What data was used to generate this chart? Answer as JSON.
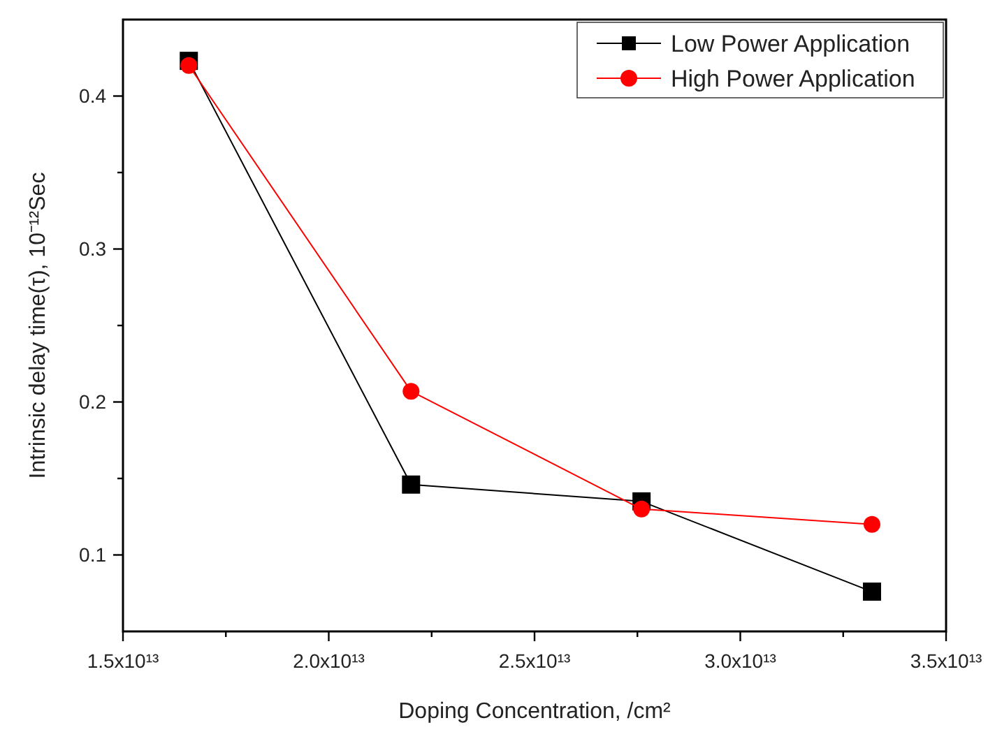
{
  "chart_data": {
    "type": "line",
    "xlabel": "Doping Concentration, /cm²",
    "ylabel": "Intrinsic delay time(τ), 10⁻¹²Sec",
    "x": [
      16600000000000.0,
      22000000000000.0,
      27600000000000.0,
      33200000000000.0
    ],
    "series": [
      {
        "name": "Low Power Application",
        "color": "#000000",
        "marker": "square",
        "values": [
          0.423,
          0.146,
          0.135,
          0.076
        ]
      },
      {
        "name": "High Power Application",
        "color": "#ff0000",
        "marker": "circle",
        "values": [
          0.42,
          0.207,
          0.13,
          0.12
        ]
      }
    ],
    "xlim": [
      15000000000000.0,
      35000000000000.0
    ],
    "xticks": [
      {
        "value": 15000000000000.0,
        "label": "1.5x10¹³"
      },
      {
        "value": 17500000000000.0,
        "label": null
      },
      {
        "value": 20000000000000.0,
        "label": "2.0x10¹³"
      },
      {
        "value": 22500000000000.0,
        "label": null
      },
      {
        "value": 25000000000000.0,
        "label": "2.5x10¹³"
      },
      {
        "value": 27500000000000.0,
        "label": null
      },
      {
        "value": 30000000000000.0,
        "label": "3.0x10¹³"
      },
      {
        "value": 32500000000000.0,
        "label": null
      },
      {
        "value": 35000000000000.0,
        "label": "3.5x10¹³"
      }
    ],
    "ylim": [
      0.05,
      0.45
    ],
    "yticks": [
      {
        "value": 0.1,
        "label": "0.1"
      },
      {
        "value": 0.15,
        "label": null
      },
      {
        "value": 0.2,
        "label": "0.2"
      },
      {
        "value": 0.25,
        "label": null
      },
      {
        "value": 0.3,
        "label": "0.3"
      },
      {
        "value": 0.35,
        "label": null
      },
      {
        "value": 0.4,
        "label": "0.4"
      }
    ],
    "grid": false,
    "legend": "top right",
    "line_style": "solid"
  }
}
